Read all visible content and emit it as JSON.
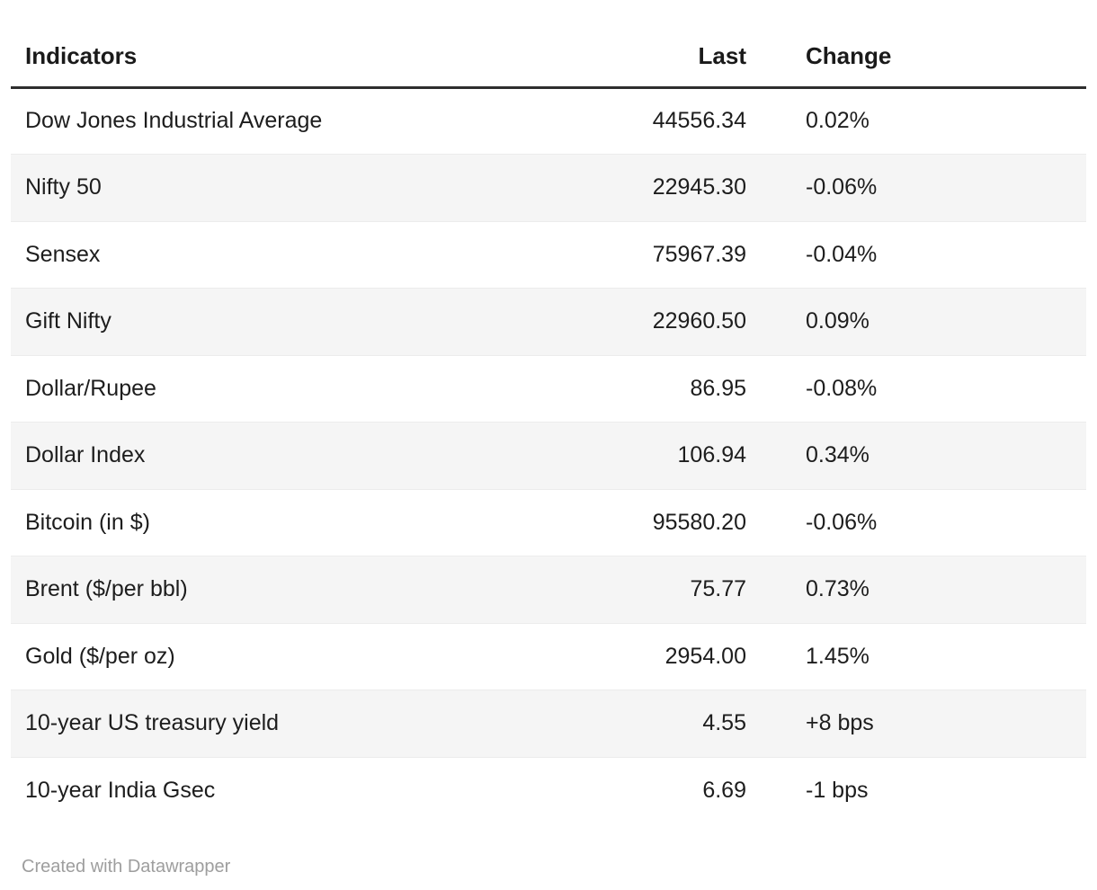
{
  "chart_data": {
    "type": "table",
    "columns": [
      "Indicators",
      "Last",
      "Change"
    ],
    "rows": [
      {
        "indicator": "Dow Jones Industrial Average",
        "last": "44556.34",
        "change": "0.02%"
      },
      {
        "indicator": "Nifty 50",
        "last": "22945.30",
        "change": "-0.06%"
      },
      {
        "indicator": "Sensex",
        "last": "75967.39",
        "change": "-0.04%"
      },
      {
        "indicator": "Gift Nifty",
        "last": "22960.50",
        "change": "0.09%"
      },
      {
        "indicator": "Dollar/Rupee",
        "last": "86.95",
        "change": "-0.08%"
      },
      {
        "indicator": "Dollar Index",
        "last": "106.94",
        "change": "0.34%"
      },
      {
        "indicator": "Bitcoin (in $)",
        "last": "95580.20",
        "change": "-0.06%"
      },
      {
        "indicator": "Brent ($/per bbl)",
        "last": "75.77",
        "change": "0.73%"
      },
      {
        "indicator": "Gold ($/per oz)",
        "last": "2954.00",
        "change": "1.45%"
      },
      {
        "indicator": "10-year US treasury yield",
        "last": "4.55",
        "change": "+8 bps"
      },
      {
        "indicator": "10-year India Gsec",
        "last": "6.69",
        "change": "-1 bps"
      }
    ],
    "layout": {
      "striped_row_indices_zero_based": [
        1,
        3,
        5,
        7,
        9
      ],
      "last_column_align": "right",
      "change_column_align": "left"
    }
  },
  "colors": {
    "header_rule": "#2e2e2e",
    "stripe_background": "#f5f5f5",
    "stripe_border": "#ececec",
    "text": "#1d1d1d",
    "footer_text": "#9e9e9e"
  },
  "footer": {
    "attribution": "Created with Datawrapper"
  }
}
